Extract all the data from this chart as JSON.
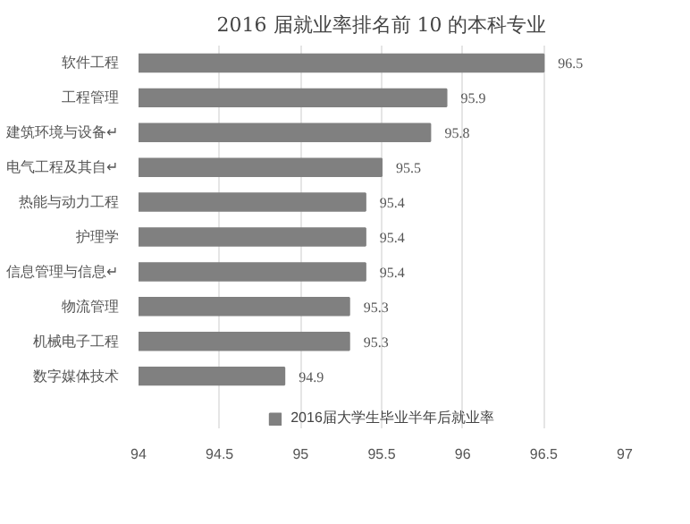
{
  "chart_data": {
    "type": "bar",
    "orientation": "horizontal",
    "title": "2016 届就业率排名前 10 的本科专业",
    "categories": [
      "软件工程",
      "工程管理",
      "建筑环境与设备↵",
      "电气工程及其自↵",
      "热能与动力工程",
      "护理学",
      "信息管理与信息↵",
      "物流管理",
      "机械电子工程",
      "数字媒体技术"
    ],
    "series": [
      {
        "name": "2016届大学生毕业半年后就业率",
        "color": "#808080",
        "values": [
          96.5,
          95.9,
          95.8,
          95.5,
          95.4,
          95.4,
          95.4,
          95.3,
          95.3,
          94.9
        ]
      }
    ],
    "xlim": [
      94,
      97
    ],
    "xticks": [
      94,
      94.5,
      95,
      95.5,
      96,
      96.5,
      97
    ],
    "grid": "x",
    "legend": "bottom",
    "data_labels": true
  }
}
